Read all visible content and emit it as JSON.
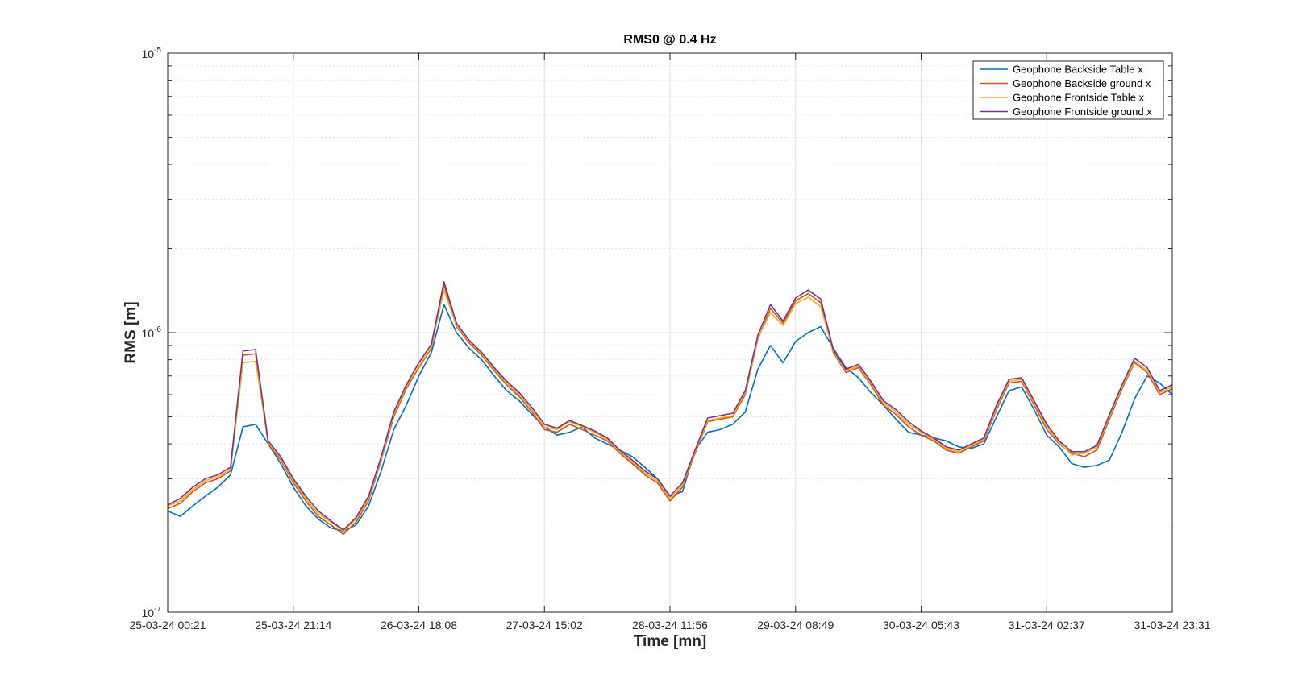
{
  "chart_data": {
    "type": "line",
    "title": "RMS0 @ 0.4 Hz",
    "xlabel": "Time [mn]",
    "ylabel": "RMS [m]",
    "yscale": "log",
    "ylim": [
      1e-07,
      1e-05
    ],
    "ytick_labels": [
      {
        "value": 1e-07,
        "base": "10",
        "exp": "-7"
      },
      {
        "value": 1e-06,
        "base": "10",
        "exp": "-6"
      },
      {
        "value": 1e-05,
        "base": "10",
        "exp": "-5"
      }
    ],
    "xticks": [
      "25-03-24 00:21",
      "25-03-24 21:14",
      "26-03-24 18:08",
      "27-03-24 15:02",
      "28-03-24 11:56",
      "29-03-24 08:49",
      "30-03-24 05:43",
      "31-03-24 02:37",
      "31-03-24 23:31"
    ],
    "grid": true,
    "legend_position": "top-right",
    "x": [
      0.0,
      0.1,
      0.2,
      0.3,
      0.4,
      0.5,
      0.6,
      0.7,
      0.8,
      0.9,
      1.0,
      1.1,
      1.2,
      1.3,
      1.4,
      1.5,
      1.6,
      1.7,
      1.8,
      1.9,
      2.0,
      2.1,
      2.2,
      2.3,
      2.4,
      2.5,
      2.6,
      2.7,
      2.8,
      2.9,
      3.0,
      3.1,
      3.2,
      3.3,
      3.4,
      3.5,
      3.6,
      3.7,
      3.8,
      3.9,
      4.0,
      4.1,
      4.2,
      4.3,
      4.4,
      4.5,
      4.6,
      4.7,
      4.8,
      4.9,
      5.0,
      5.1,
      5.2,
      5.3,
      5.4,
      5.5,
      5.6,
      5.7,
      5.8,
      5.9,
      6.0,
      6.1,
      6.2,
      6.3,
      6.4,
      6.5,
      6.6,
      6.7,
      6.8,
      6.9,
      7.0,
      7.1,
      7.2,
      7.3,
      7.4,
      7.5,
      7.6,
      7.7,
      7.8,
      7.9,
      8.0
    ],
    "series": [
      {
        "name": "Geophone Backside Table x",
        "color": "#0072BD",
        "values": [
          2.3e-07,
          2.2e-07,
          2.4e-07,
          2.6e-07,
          2.8e-07,
          3.1e-07,
          4.6e-07,
          4.7e-07,
          4e-07,
          3.4e-07,
          2.8e-07,
          2.4e-07,
          2.15e-07,
          2e-07,
          1.95e-07,
          2.05e-07,
          2.4e-07,
          3.2e-07,
          4.5e-07,
          5.5e-07,
          7e-07,
          8.5e-07,
          1.26e-06,
          1e-06,
          8.8e-07,
          8e-07,
          7e-07,
          6.2e-07,
          5.7e-07,
          5.1e-07,
          4.6e-07,
          4.3e-07,
          4.4e-07,
          4.6e-07,
          4.2e-07,
          4e-07,
          3.8e-07,
          3.6e-07,
          3.3e-07,
          3e-07,
          2.6e-07,
          2.7e-07,
          3.8e-07,
          4.4e-07,
          4.5e-07,
          4.7e-07,
          5.2e-07,
          7.4e-07,
          9e-07,
          7.8e-07,
          9.3e-07,
          1e-06,
          1.05e-06,
          8.8e-07,
          7.5e-07,
          6.9e-07,
          6.1e-07,
          5.5e-07,
          4.9e-07,
          4.4e-07,
          4.3e-07,
          4.2e-07,
          4.1e-07,
          3.9e-07,
          3.85e-07,
          4e-07,
          5e-07,
          6.2e-07,
          6.4e-07,
          5.3e-07,
          4.3e-07,
          3.9e-07,
          3.4e-07,
          3.3e-07,
          3.35e-07,
          3.5e-07,
          4.4e-07,
          5.8e-07,
          7e-07,
          6.6e-07,
          6e-07
        ]
      },
      {
        "name": "Geophone Backside ground x",
        "color": "#D95319",
        "values": [
          2.35e-07,
          2.45e-07,
          2.7e-07,
          2.9e-07,
          3e-07,
          3.2e-07,
          8.3e-07,
          8.4e-07,
          4e-07,
          3.5e-07,
          2.9e-07,
          2.5e-07,
          2.2e-07,
          2.05e-07,
          1.9e-07,
          2.1e-07,
          2.5e-07,
          3.5e-07,
          5e-07,
          6.3e-07,
          7.5e-07,
          8.8e-07,
          1.48e-06,
          1.05e-06,
          9.2e-07,
          8.3e-07,
          7.3e-07,
          6.5e-07,
          5.9e-07,
          5.2e-07,
          4.5e-07,
          4.4e-07,
          4.7e-07,
          4.5e-07,
          4.3e-07,
          4.1e-07,
          3.7e-07,
          3.4e-07,
          3.1e-07,
          2.9e-07,
          2.5e-07,
          2.8e-07,
          3.7e-07,
          4.8e-07,
          4.9e-07,
          5e-07,
          6e-07,
          9.5e-07,
          1.22e-06,
          1.08e-06,
          1.3e-06,
          1.38e-06,
          1.28e-06,
          8.5e-07,
          7.2e-07,
          7.5e-07,
          6.5e-07,
          5.5e-07,
          5.1e-07,
          4.6e-07,
          4.3e-07,
          4.1e-07,
          3.8e-07,
          3.7e-07,
          3.9e-07,
          4.1e-07,
          5.3e-07,
          6.6e-07,
          6.7e-07,
          5.5e-07,
          4.5e-07,
          4e-07,
          3.7e-07,
          3.6e-07,
          3.8e-07,
          4.9e-07,
          6.3e-07,
          7.8e-07,
          7.2e-07,
          6e-07,
          6.3e-07
        ]
      },
      {
        "name": "Geophone Frontside Table x",
        "color": "#EDB120",
        "values": [
          2.4e-07,
          2.5e-07,
          2.75e-07,
          2.95e-07,
          3.05e-07,
          3.25e-07,
          7.8e-07,
          7.9e-07,
          4.05e-07,
          3.55e-07,
          2.95e-07,
          2.55e-07,
          2.25e-07,
          2.1e-07,
          1.95e-07,
          2.15e-07,
          2.55e-07,
          3.55e-07,
          5.1e-07,
          6.4e-07,
          7.6e-07,
          8.9e-07,
          1.42e-06,
          1.06e-06,
          9.3e-07,
          8.4e-07,
          7.4e-07,
          6.6e-07,
          6e-07,
          5.3e-07,
          4.6e-07,
          4.5e-07,
          4.8e-07,
          4.6e-07,
          4.4e-07,
          4.15e-07,
          3.75e-07,
          3.45e-07,
          3.15e-07,
          2.95e-07,
          2.55e-07,
          2.85e-07,
          3.75e-07,
          4.85e-07,
          4.95e-07,
          5.05e-07,
          6.1e-07,
          9.6e-07,
          1.18e-06,
          1.06e-06,
          1.27e-06,
          1.34e-06,
          1.24e-06,
          8.6e-07,
          7.3e-07,
          7.6e-07,
          6.6e-07,
          5.6e-07,
          5.2e-07,
          4.7e-07,
          4.4e-07,
          4.15e-07,
          3.85e-07,
          3.75e-07,
          3.95e-07,
          4.15e-07,
          5.4e-07,
          6.7e-07,
          6.8e-07,
          5.6e-07,
          4.6e-07,
          4.05e-07,
          3.65e-07,
          3.7e-07,
          3.9e-07,
          5e-07,
          6.4e-07,
          7.9e-07,
          7.3e-07,
          6.1e-07,
          6.4e-07
        ]
      },
      {
        "name": "Geophone Frontside ground x",
        "color": "#7E2F8E",
        "values": [
          2.42e-07,
          2.55e-07,
          2.8e-07,
          3e-07,
          3.1e-07,
          3.3e-07,
          8.6e-07,
          8.7e-07,
          4.1e-07,
          3.6e-07,
          3e-07,
          2.6e-07,
          2.3e-07,
          2.12e-07,
          1.97e-07,
          2.18e-07,
          2.6e-07,
          3.6e-07,
          5.2e-07,
          6.5e-07,
          7.8e-07,
          9.1e-07,
          1.52e-06,
          1.08e-06,
          9.4e-07,
          8.5e-07,
          7.5e-07,
          6.7e-07,
          6.1e-07,
          5.4e-07,
          4.7e-07,
          4.55e-07,
          4.85e-07,
          4.65e-07,
          4.45e-07,
          4.2e-07,
          3.8e-07,
          3.5e-07,
          3.2e-07,
          3e-07,
          2.6e-07,
          2.9e-07,
          3.8e-07,
          4.95e-07,
          5.05e-07,
          5.15e-07,
          6.2e-07,
          9.8e-07,
          1.26e-06,
          1.1e-06,
          1.33e-06,
          1.42e-06,
          1.32e-06,
          8.7e-07,
          7.4e-07,
          7.7e-07,
          6.7e-07,
          5.7e-07,
          5.3e-07,
          4.8e-07,
          4.45e-07,
          4.2e-07,
          3.9e-07,
          3.8e-07,
          4e-07,
          4.2e-07,
          5.5e-07,
          6.8e-07,
          6.9e-07,
          5.7e-07,
          4.7e-07,
          4.1e-07,
          3.75e-07,
          3.75e-07,
          3.95e-07,
          5.1e-07,
          6.5e-07,
          8.1e-07,
          7.5e-07,
          6.2e-07,
          6.5e-07
        ]
      }
    ]
  }
}
